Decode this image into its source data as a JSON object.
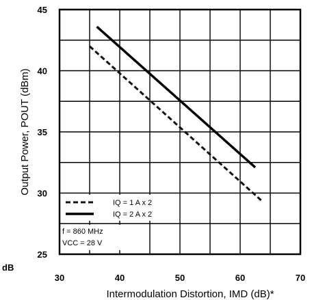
{
  "chart_data": {
    "type": "line",
    "xlabel": "Intermodulation Distortion, IMD (dB)*",
    "ylabel": "Output Power, POUT (dBm)",
    "corner_note": "dB",
    "xlim": [
      30,
      70
    ],
    "ylim": [
      25,
      45
    ],
    "x_ticks": [
      "30",
      "40",
      "50",
      "60",
      "70"
    ],
    "y_ticks": [
      "25",
      "30",
      "35",
      "40",
      "45"
    ],
    "grid": true,
    "legend_position": "bottom-left",
    "series": [
      {
        "name": "IQ = 1 A x 2",
        "style": "dashed",
        "color": "#111111",
        "x": [
          35,
          63.5
        ],
        "y": [
          42,
          29.4
        ]
      },
      {
        "name": "IQ = 2 A x 2",
        "style": "solid",
        "color": "#000000",
        "x": [
          36.2,
          62.5
        ],
        "y": [
          43.6,
          32.1
        ]
      }
    ],
    "annotations": [
      "f = 860 MHz",
      "VCC = 28 V"
    ]
  }
}
